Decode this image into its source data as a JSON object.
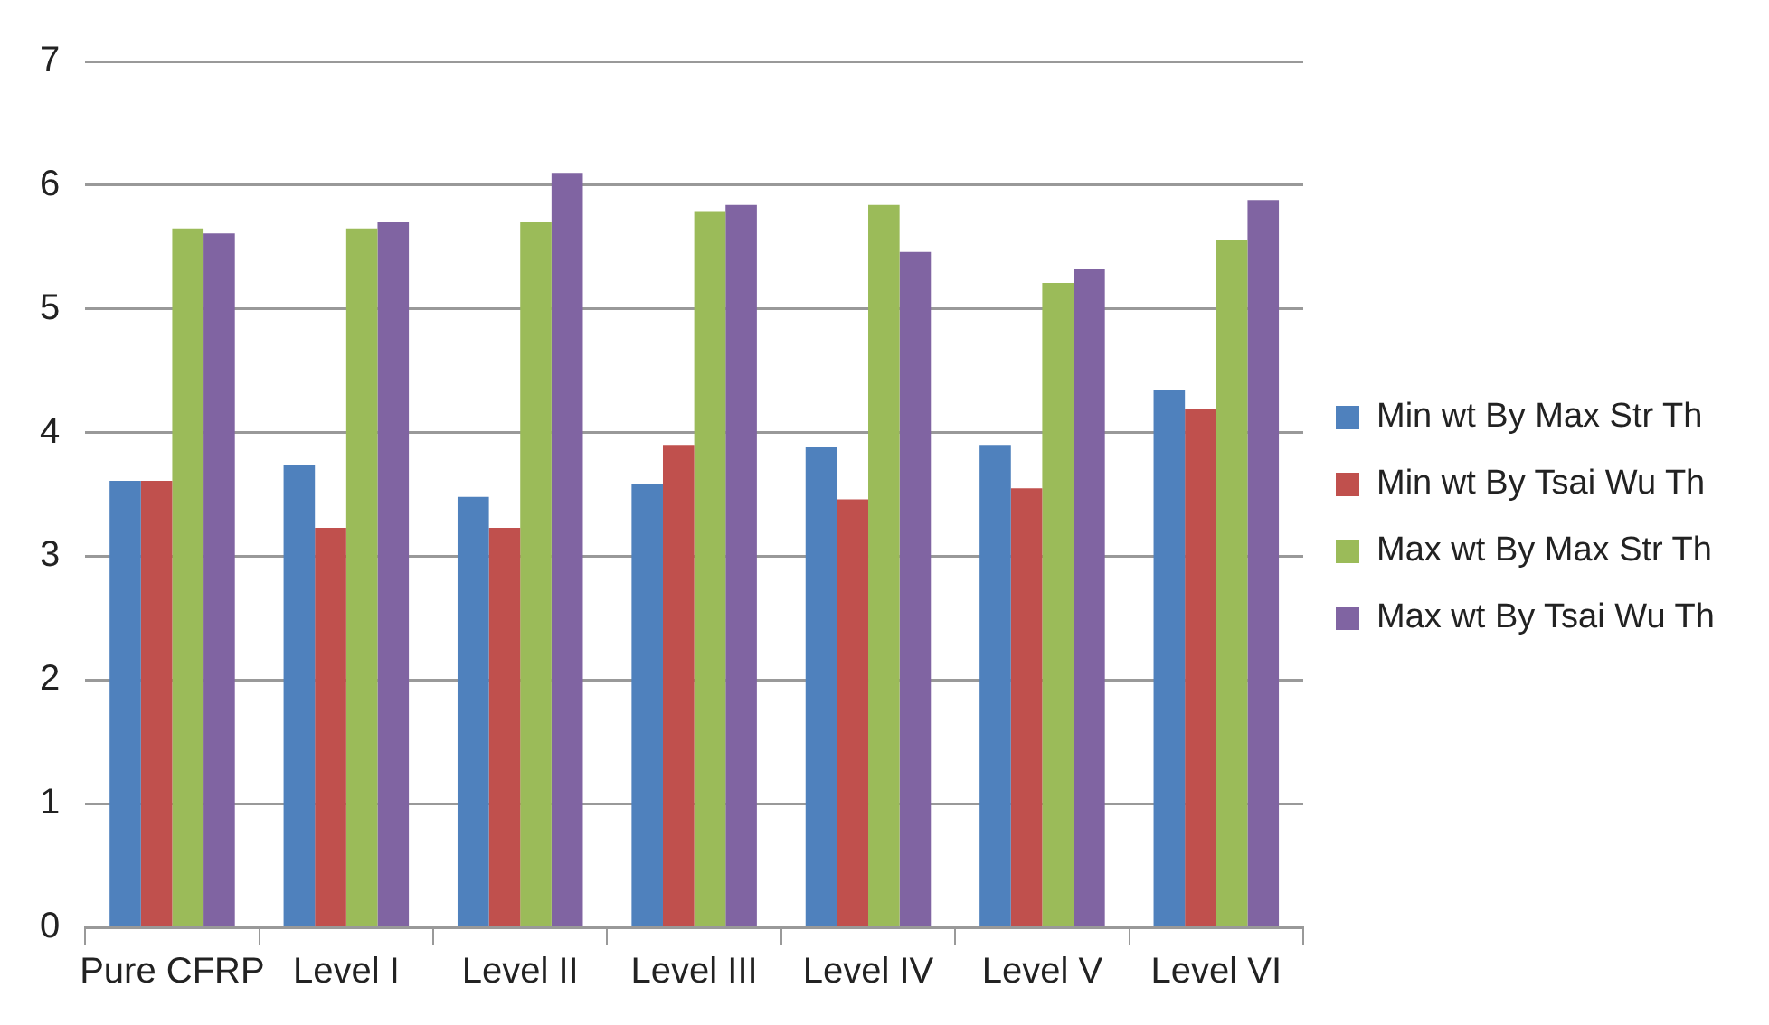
{
  "chart_data": {
    "type": "bar",
    "categories": [
      "Pure CFRP",
      "Level I",
      "Level II",
      "Level III",
      "Level IV",
      "Level V",
      "Level VI"
    ],
    "series": [
      {
        "name": "Min wt By Max Str Th",
        "color": "#4f81bd",
        "values": [
          3.61,
          3.74,
          3.48,
          3.58,
          3.88,
          3.9,
          4.34
        ]
      },
      {
        "name": "Min wt By Tsai Wu Th",
        "color": "#c0504d",
        "values": [
          3.61,
          3.23,
          3.23,
          3.9,
          3.46,
          3.55,
          4.19
        ]
      },
      {
        "name": "Max wt By Max Str Th",
        "color": "#9bbb59",
        "values": [
          5.65,
          5.65,
          5.7,
          5.79,
          5.84,
          5.21,
          5.56
        ]
      },
      {
        "name": "Max wt By Tsai Wu Th",
        "color": "#8064a2",
        "values": [
          5.61,
          5.7,
          6.1,
          5.84,
          5.46,
          5.32,
          5.88
        ]
      }
    ],
    "ylim": [
      0,
      7
    ],
    "yticks": [
      0,
      1,
      2,
      3,
      4,
      5,
      6,
      7
    ],
    "grid": "y",
    "legend": "right"
  }
}
